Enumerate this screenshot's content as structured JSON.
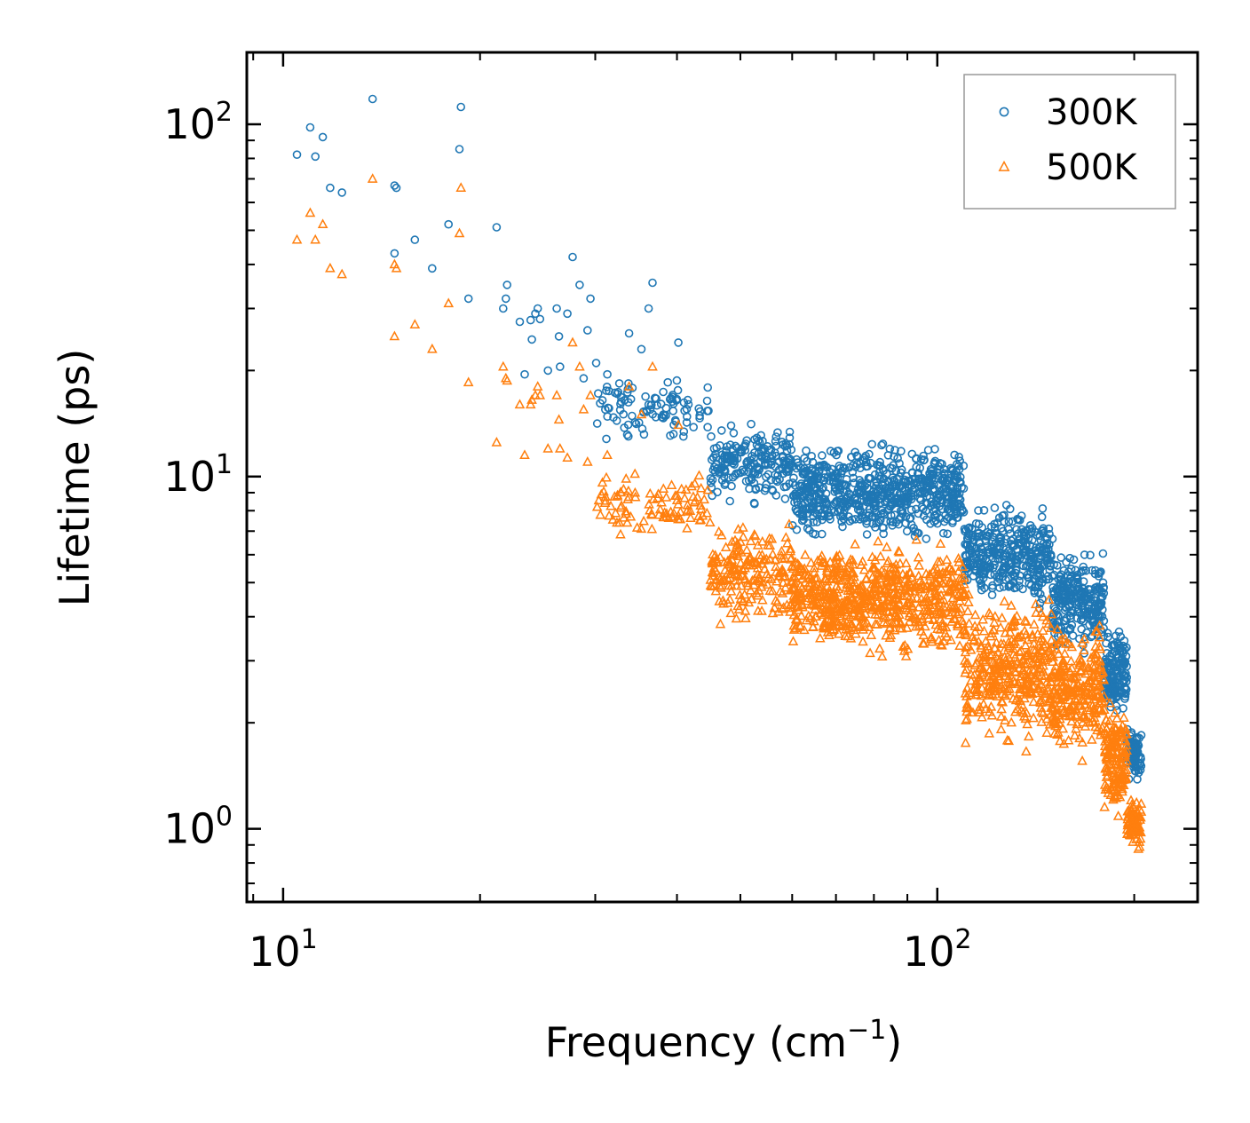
{
  "chart_data": {
    "type": "scatter",
    "xscale": "log",
    "yscale": "log",
    "xlim": [
      8.8,
      250
    ],
    "ylim": [
      0.62,
      160
    ],
    "xlabel_text": "Frequency (cm",
    "xlabel_sup": "−1",
    "xlabel_close": ")",
    "ylabel": "Lifetime (ps)",
    "x_ticks": [
      {
        "value": 10,
        "base": "10",
        "exp": "1"
      },
      {
        "value": 100,
        "base": "10",
        "exp": "2"
      }
    ],
    "y_ticks": [
      {
        "value": 1,
        "base": "10",
        "exp": "0"
      },
      {
        "value": 10,
        "base": "10",
        "exp": "1"
      },
      {
        "value": 100,
        "base": "10",
        "exp": "2"
      }
    ],
    "legend_position": "top-right",
    "series": [
      {
        "name": "300K",
        "marker": "circle",
        "color": "#1f77b4",
        "outliers": [
          [
            10.5,
            82
          ],
          [
            11,
            98
          ],
          [
            11.2,
            81
          ],
          [
            11.5,
            92
          ],
          [
            11.8,
            66
          ],
          [
            12.3,
            64
          ],
          [
            13.7,
            118
          ],
          [
            14.8,
            67
          ],
          [
            14.9,
            66
          ],
          [
            14.8,
            43
          ],
          [
            15.9,
            47
          ],
          [
            16.9,
            39
          ],
          [
            17.9,
            52
          ],
          [
            18.6,
            85
          ],
          [
            18.7,
            112
          ],
          [
            19.2,
            32
          ],
          [
            21.2,
            51
          ],
          [
            21.7,
            30
          ],
          [
            21.9,
            32
          ],
          [
            22,
            35
          ],
          [
            23,
            27.5
          ],
          [
            23.4,
            19.5
          ],
          [
            23.9,
            27.8
          ],
          [
            24,
            24.5
          ],
          [
            24.3,
            29
          ],
          [
            24.5,
            30
          ],
          [
            24.7,
            28
          ],
          [
            25.4,
            20
          ],
          [
            26.2,
            30
          ],
          [
            26.4,
            25
          ],
          [
            26.5,
            20.5
          ],
          [
            27.2,
            29
          ],
          [
            27.7,
            42
          ],
          [
            28.4,
            35
          ],
          [
            28.8,
            19
          ],
          [
            29.2,
            26
          ],
          [
            29.5,
            32
          ],
          [
            30.1,
            21
          ],
          [
            31.3,
            19.5
          ],
          [
            33.8,
            25.5
          ],
          [
            35.3,
            23
          ],
          [
            36.2,
            30
          ],
          [
            36.7,
            35.5
          ],
          [
            40.2,
            24
          ]
        ],
        "bands": [
          {
            "x": [
              30,
              45
            ],
            "ymin": 12,
            "ymax": 20,
            "n": 100
          },
          {
            "x": [
              45,
              60
            ],
            "ymin": 8,
            "ymax": 15,
            "n": 200
          },
          {
            "x": [
              60,
              110
            ],
            "ymin": 6.2,
            "ymax": 13,
            "n": 700
          },
          {
            "x": [
              110,
              150
            ],
            "ymin": 4,
            "ymax": 9,
            "n": 380
          },
          {
            "x": [
              150,
              180
            ],
            "ymin": 3,
            "ymax": 6.5,
            "n": 260
          },
          {
            "x": [
              180,
              195
            ],
            "ymin": 2,
            "ymax": 4,
            "n": 160
          },
          {
            "x": [
              195,
              205
            ],
            "ymin": 1.3,
            "ymax": 2,
            "n": 80
          }
        ]
      },
      {
        "name": "500K",
        "marker": "triangle",
        "color": "#ff7f0e",
        "outliers": [
          [
            10.5,
            47
          ],
          [
            11,
            56
          ],
          [
            11.2,
            47
          ],
          [
            11.5,
            52
          ],
          [
            11.8,
            39
          ],
          [
            12.3,
            37.5
          ],
          [
            13.7,
            70
          ],
          [
            14.8,
            40
          ],
          [
            14.9,
            39
          ],
          [
            14.8,
            25
          ],
          [
            15.9,
            27
          ],
          [
            16.9,
            23
          ],
          [
            17.9,
            31
          ],
          [
            18.6,
            49
          ],
          [
            18.7,
            66
          ],
          [
            19.2,
            18.5
          ],
          [
            21.2,
            12.5
          ],
          [
            21.7,
            20.5
          ],
          [
            21.9,
            19
          ],
          [
            22,
            18.7
          ],
          [
            23,
            16
          ],
          [
            23.4,
            11.5
          ],
          [
            23.9,
            16
          ],
          [
            24,
            16.5
          ],
          [
            24.3,
            17
          ],
          [
            24.5,
            18
          ],
          [
            24.7,
            17
          ],
          [
            25.4,
            12
          ],
          [
            26.2,
            17
          ],
          [
            26.4,
            14.5
          ],
          [
            26.5,
            12
          ],
          [
            27.2,
            11.3
          ],
          [
            27.7,
            24
          ],
          [
            28.4,
            20.5
          ],
          [
            28.8,
            15.5
          ],
          [
            29.2,
            11
          ],
          [
            29.5,
            17
          ],
          [
            31.3,
            11.5
          ],
          [
            33.8,
            18
          ],
          [
            35.3,
            15
          ],
          [
            36.7,
            20.5
          ],
          [
            40.2,
            14
          ]
        ],
        "bands": [
          {
            "x": [
              30,
              45
            ],
            "ymin": 6.5,
            "ymax": 10.5,
            "n": 100
          },
          {
            "x": [
              45,
              60
            ],
            "ymin": 3.5,
            "ymax": 8,
            "n": 200
          },
          {
            "x": [
              60,
              110
            ],
            "ymin": 2.9,
            "ymax": 7,
            "n": 700
          },
          {
            "x": [
              110,
              150
            ],
            "ymin": 1.6,
            "ymax": 5,
            "n": 380
          },
          {
            "x": [
              150,
              180
            ],
            "ymin": 1.5,
            "ymax": 4,
            "n": 260
          },
          {
            "x": [
              180,
              195
            ],
            "ymin": 1,
            "ymax": 2.6,
            "n": 160
          },
          {
            "x": [
              195,
              205
            ],
            "ymin": 0.82,
            "ymax": 1.3,
            "n": 80
          }
        ]
      }
    ]
  }
}
